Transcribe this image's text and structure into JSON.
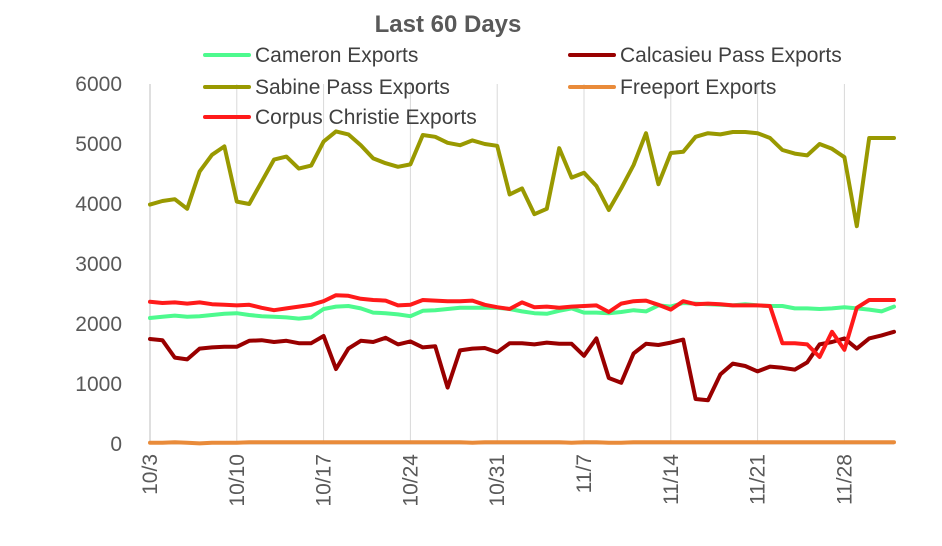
{
  "chart_data": {
    "type": "line",
    "title": "Last 60 Days",
    "xlabel": "",
    "ylabel": "",
    "ylim": [
      0,
      6000
    ],
    "yticks": [
      0,
      1000,
      2000,
      3000,
      4000,
      5000,
      6000
    ],
    "grid": "vertical gridlines at date labels",
    "legend": "top",
    "x": [
      "10/3",
      "10/4",
      "10/5",
      "10/6",
      "10/7",
      "10/8",
      "10/9",
      "10/10",
      "10/11",
      "10/12",
      "10/13",
      "10/14",
      "10/15",
      "10/16",
      "10/17",
      "10/18",
      "10/19",
      "10/20",
      "10/21",
      "10/22",
      "10/23",
      "10/24",
      "10/25",
      "10/26",
      "10/27",
      "10/28",
      "10/29",
      "10/30",
      "10/31",
      "11/1",
      "11/2",
      "11/3",
      "11/4",
      "11/5",
      "11/6",
      "11/7",
      "11/8",
      "11/9",
      "11/10",
      "11/11",
      "11/12",
      "11/13",
      "11/14",
      "11/15",
      "11/16",
      "11/17",
      "11/18",
      "11/19",
      "11/20",
      "11/21",
      "11/22",
      "11/23",
      "11/24",
      "11/25",
      "11/26",
      "11/27",
      "11/28",
      "11/29",
      "11/30",
      "12/1",
      "12/2"
    ],
    "xticks": [
      "10/3",
      "10/10",
      "10/17",
      "10/24",
      "10/31",
      "11/7",
      "11/14",
      "11/21",
      "11/28"
    ],
    "series": [
      {
        "name": "Cameron Exports",
        "color": "#4dfa8e",
        "values": [
          2100,
          2120,
          2140,
          2120,
          2130,
          2150,
          2170,
          2180,
          2150,
          2130,
          2120,
          2110,
          2090,
          2110,
          2250,
          2290,
          2300,
          2260,
          2190,
          2180,
          2160,
          2130,
          2220,
          2230,
          2250,
          2270,
          2270,
          2270,
          2270,
          2250,
          2210,
          2180,
          2170,
          2220,
          2260,
          2190,
          2190,
          2180,
          2200,
          2230,
          2210,
          2310,
          2290,
          2350,
          2340,
          2330,
          2320,
          2310,
          2330,
          2310,
          2300,
          2300,
          2260,
          2260,
          2250,
          2260,
          2280,
          2260,
          2240,
          2210,
          2290
        ]
      },
      {
        "name": "Calcasieu Pass Exports",
        "color": "#990000",
        "values": [
          1750,
          1730,
          1440,
          1410,
          1590,
          1610,
          1620,
          1620,
          1720,
          1730,
          1700,
          1720,
          1680,
          1680,
          1800,
          1250,
          1590,
          1720,
          1700,
          1770,
          1660,
          1710,
          1610,
          1630,
          940,
          1560,
          1590,
          1600,
          1530,
          1680,
          1680,
          1660,
          1690,
          1670,
          1670,
          1470,
          1760,
          1100,
          1020,
          1510,
          1670,
          1650,
          1690,
          1740,
          750,
          730,
          1160,
          1340,
          1300,
          1210,
          1290,
          1270,
          1240,
          1360,
          1660,
          1700,
          1760,
          1590,
          1760,
          1810,
          1870
        ]
      },
      {
        "name": "Sabine Pass Exports",
        "color": "#999900",
        "values": [
          3990,
          4050,
          4080,
          3920,
          4540,
          4820,
          4960,
          4040,
          4000,
          4370,
          4740,
          4790,
          4590,
          4640,
          5040,
          5210,
          5160,
          4980,
          4760,
          4680,
          4620,
          4660,
          5150,
          5120,
          5020,
          4980,
          5060,
          5000,
          4970,
          4160,
          4260,
          3830,
          3920,
          4930,
          4440,
          4520,
          4300,
          3900,
          4260,
          4650,
          5180,
          4330,
          4850,
          4870,
          5120,
          5180,
          5160,
          5200,
          5200,
          5180,
          5100,
          4900,
          4840,
          4810,
          5000,
          4920,
          4780,
          3630,
          5100,
          5100,
          5100
        ]
      },
      {
        "name": "Freeport Exports",
        "color": "#e98b3a",
        "values": [
          20,
          20,
          30,
          20,
          10,
          20,
          20,
          20,
          30,
          30,
          30,
          30,
          30,
          30,
          30,
          30,
          30,
          30,
          30,
          30,
          30,
          30,
          30,
          30,
          30,
          30,
          20,
          30,
          30,
          30,
          30,
          30,
          30,
          30,
          20,
          30,
          30,
          20,
          20,
          30,
          30,
          30,
          30,
          30,
          30,
          30,
          30,
          30,
          30,
          30,
          30,
          30,
          30,
          30,
          30,
          30,
          30,
          30,
          30,
          30,
          30
        ]
      },
      {
        "name": "Corpus Christie Exports",
        "color": "#ff1a1a",
        "values": [
          2370,
          2350,
          2360,
          2340,
          2360,
          2330,
          2320,
          2310,
          2320,
          2270,
          2230,
          2260,
          2290,
          2320,
          2380,
          2480,
          2470,
          2420,
          2400,
          2390,
          2310,
          2320,
          2400,
          2390,
          2380,
          2380,
          2390,
          2320,
          2280,
          2250,
          2360,
          2280,
          2290,
          2270,
          2290,
          2300,
          2310,
          2200,
          2340,
          2380,
          2390,
          2320,
          2240,
          2380,
          2330,
          2340,
          2330,
          2310,
          2310,
          2310,
          2300,
          1680,
          1680,
          1660,
          1450,
          1870,
          1570,
          2270,
          2400,
          2400,
          2400
        ]
      }
    ]
  }
}
